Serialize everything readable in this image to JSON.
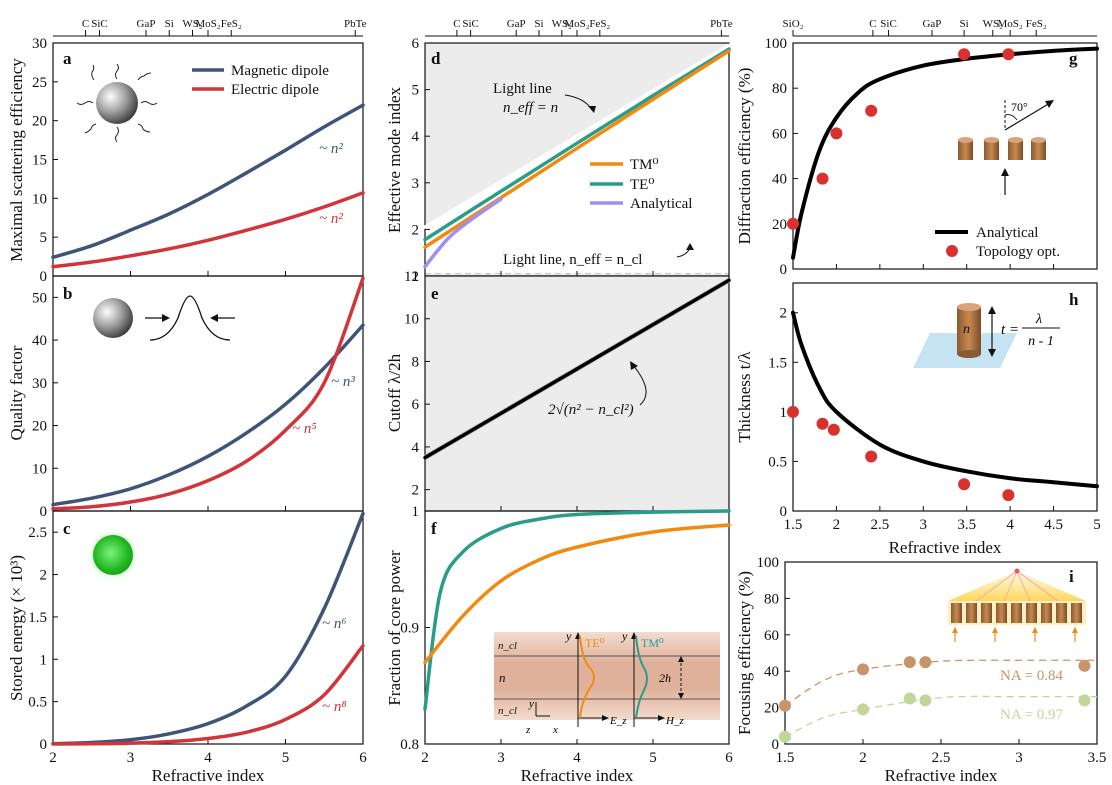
{
  "colors": {
    "magnetic": "#3e5478",
    "electric": "#d2343a",
    "tm0": "#f28a10",
    "te0": "#2a9d8a",
    "analytical_purple": "#a08ef0",
    "red_dot": "#d8312e",
    "brown": "#c8946a",
    "olive": "#c2d69a",
    "shade": "#ececec"
  },
  "top_materials_left": [
    "C",
    "SiC",
    "GaP",
    "Si",
    "WS₂",
    "MoS₂",
    "FeS₂",
    "PbTe"
  ],
  "top_materials_mid": [
    "C",
    "SiC",
    "GaP",
    "Si",
    "WS₂",
    "MoS₂",
    "FeS₂",
    "PbTe"
  ],
  "top_materials_right": [
    "SiO₂",
    "C",
    "SiC",
    "GaP",
    "Si",
    "WS₂",
    "MoS₂",
    "FeS₂"
  ],
  "panels": {
    "a": {
      "letter": "a",
      "ylabel": "Maximal scattering efficiency",
      "legend": [
        "Magnetic dipole",
        "Electric dipole"
      ],
      "annotations": [
        "~ n²",
        "~ n²"
      ]
    },
    "b": {
      "letter": "b",
      "ylabel": "Quality factor",
      "annotations": [
        "~ n³",
        "~ n⁵"
      ]
    },
    "c": {
      "letter": "c",
      "ylabel": "Stored energy (× 10³)",
      "xlabel": "Refractive index",
      "annotations": [
        "~ n⁶",
        "~ n⁸"
      ]
    },
    "d": {
      "letter": "d",
      "ylabel": "Effective mode index",
      "legend": [
        "TM⁰",
        "TE⁰",
        "Analytical"
      ],
      "light_line_top": [
        "Light line",
        "n_eff = n"
      ],
      "light_line_bottom": "Light line, n_eff = n_cl"
    },
    "e": {
      "letter": "e",
      "ylabel": "Cutoff λ/2h",
      "formula": "2√(n² − n_cl²)"
    },
    "f": {
      "letter": "f",
      "ylabel": "Fraction of core power",
      "xlabel": "Refractive index",
      "inset": {
        "ncl_top": "n_cl",
        "n_core": "n",
        "ncl_bottom": "n_cl",
        "te_label": "TE⁰",
        "tm_label": "TM⁰",
        "thickness": "2h",
        "ex": "E_z",
        "hz": "H_z",
        "axes_y": "y",
        "axes_z": "z",
        "axes_x": "x"
      }
    },
    "g": {
      "letter": "g",
      "ylabel": "Diffraction efficiency (%)",
      "legend": [
        "Analytical",
        "Topology opt."
      ],
      "angle_label": "70°"
    },
    "h": {
      "letter": "h",
      "ylabel": "Thickness t/λ",
      "xlabel": "Refractive index",
      "inset_n": "n",
      "inset_formula_lhs": "t =",
      "inset_formula_num": "λ",
      "inset_formula_den": "n - 1"
    },
    "i": {
      "letter": "i",
      "ylabel": "Focusing efficiency (%)",
      "xlabel": "Refractive index",
      "annotations": [
        "NA = 0.84",
        "NA = 0.97"
      ]
    }
  },
  "chart_data": [
    {
      "panel": "a",
      "type": "line",
      "xlim": [
        2,
        6
      ],
      "ylim": [
        0,
        30
      ],
      "xticks": [
        2,
        3,
        4,
        5,
        6
      ],
      "yticks": [
        0,
        5,
        10,
        15,
        20,
        25,
        30
      ],
      "ylabel": "Maximal scattering efficiency",
      "series": [
        {
          "name": "Magnetic dipole",
          "x": [
            2,
            2.5,
            3,
            3.5,
            4,
            4.5,
            5,
            5.5,
            6
          ],
          "y": [
            2.4,
            3.9,
            5.9,
            8.0,
            10.5,
            13.3,
            16.2,
            19.2,
            22.0
          ]
        },
        {
          "name": "Electric dipole",
          "x": [
            2,
            2.5,
            3,
            3.5,
            4,
            4.5,
            5,
            5.5,
            6
          ],
          "y": [
            1.2,
            1.8,
            2.6,
            3.5,
            4.6,
            5.9,
            7.3,
            8.9,
            10.7
          ]
        }
      ]
    },
    {
      "panel": "b",
      "type": "line",
      "xlim": [
        2,
        6
      ],
      "ylim": [
        0,
        55
      ],
      "xticks": [
        2,
        3,
        4,
        5,
        6
      ],
      "yticks": [
        0,
        10,
        20,
        30,
        40,
        50
      ],
      "ylabel": "Quality factor",
      "series": [
        {
          "name": "Magnetic dipole",
          "x": [
            2,
            2.5,
            3,
            3.5,
            4,
            4.5,
            5,
            5.5,
            6
          ],
          "y": [
            1.5,
            3.0,
            5.2,
            8.5,
            12.8,
            18.3,
            25.0,
            33.5,
            43.5
          ]
        },
        {
          "name": "Electric dipole",
          "x": [
            2,
            2.5,
            3,
            3.5,
            4,
            4.5,
            5,
            5.5,
            6
          ],
          "y": [
            0.5,
            1.0,
            2.1,
            4.0,
            7.1,
            11.7,
            18.9,
            30.0,
            54.5
          ]
        }
      ]
    },
    {
      "panel": "c",
      "type": "line",
      "xlim": [
        2,
        6
      ],
      "ylim": [
        0,
        2.75
      ],
      "xticks": [
        2,
        3,
        4,
        5,
        6
      ],
      "yticks": [
        0,
        0.5,
        1,
        1.5,
        2,
        2.5
      ],
      "xlabel": "Refractive index",
      "ylabel": "Stored energy (× 10³)",
      "series": [
        {
          "name": "Magnetic dipole",
          "x": [
            2,
            2.5,
            3,
            3.5,
            4,
            4.5,
            5,
            5.5,
            6
          ],
          "y": [
            0.004,
            0.018,
            0.05,
            0.12,
            0.24,
            0.45,
            0.8,
            1.6,
            2.72
          ]
        },
        {
          "name": "Electric dipole",
          "x": [
            2,
            2.5,
            3,
            3.5,
            4,
            4.5,
            5,
            5.5,
            6
          ],
          "y": [
            0.0,
            0.003,
            0.01,
            0.028,
            0.065,
            0.14,
            0.29,
            0.58,
            1.16
          ]
        }
      ]
    },
    {
      "panel": "d",
      "type": "line",
      "xlim": [
        2,
        6
      ],
      "ylim": [
        1,
        6
      ],
      "xticks": [
        2,
        3,
        4,
        5,
        6
      ],
      "yticks": [
        1,
        2,
        3,
        4,
        5,
        6
      ],
      "ylabel": "Effective mode index",
      "series": [
        {
          "name": "Light line",
          "x": [
            2,
            6
          ],
          "y": [
            2.05,
            5.95
          ]
        },
        {
          "name": "TE⁰",
          "x": [
            2,
            3,
            4,
            5,
            6
          ],
          "y": [
            1.78,
            2.82,
            3.85,
            4.87,
            5.87
          ]
        },
        {
          "name": "TM⁰",
          "x": [
            2,
            3,
            4,
            5,
            6
          ],
          "y": [
            1.62,
            2.68,
            3.74,
            4.79,
            5.83
          ]
        },
        {
          "name": "Analytical",
          "x": [
            2,
            2.3,
            2.6,
            3
          ],
          "y": [
            1.2,
            1.8,
            2.2,
            2.65
          ]
        }
      ]
    },
    {
      "panel": "e",
      "type": "line",
      "xlim": [
        2,
        6
      ],
      "ylim": [
        1,
        12
      ],
      "xticks": [
        2,
        3,
        4,
        5,
        6
      ],
      "yticks": [
        2,
        4,
        6,
        8,
        10,
        12
      ],
      "ylabel": "Cutoff λ/2h",
      "series": [
        {
          "name": "2√(n² − n_cl²)",
          "x": [
            2,
            6
          ],
          "y": [
            3.5,
            11.8
          ]
        }
      ]
    },
    {
      "panel": "f",
      "type": "line",
      "xlim": [
        2,
        6
      ],
      "ylim": [
        0.8,
        1.0
      ],
      "xticks": [
        2,
        3,
        4,
        5,
        6
      ],
      "yticks": [
        0.8,
        0.9,
        1.0
      ],
      "xlabel": "Refractive index",
      "ylabel": "Fraction of core power",
      "series": [
        {
          "name": "TE⁰",
          "x": [
            2,
            2.2,
            2.5,
            3,
            3.5,
            4,
            5,
            6
          ],
          "y": [
            0.83,
            0.93,
            0.965,
            0.985,
            0.993,
            0.997,
            0.999,
            1.0
          ]
        },
        {
          "name": "TM⁰",
          "x": [
            2,
            2.5,
            3,
            3.5,
            4,
            5,
            6
          ],
          "y": [
            0.87,
            0.91,
            0.94,
            0.958,
            0.969,
            0.982,
            0.988
          ]
        }
      ]
    },
    {
      "panel": "g",
      "type": "line+scatter",
      "xlim": [
        1.5,
        5
      ],
      "ylim": [
        0,
        100
      ],
      "xticks": [
        1.5,
        2,
        2.5,
        3,
        3.5,
        4,
        4.5,
        5
      ],
      "yticks": [
        0,
        20,
        40,
        60,
        80,
        100
      ],
      "ylabel": "Diffraction efficiency (%)",
      "series": [
        {
          "name": "Analytical",
          "x": [
            1.5,
            1.6,
            1.8,
            2,
            2.25,
            2.5,
            3,
            3.5,
            4,
            4.5,
            5
          ],
          "y": [
            5,
            25,
            52,
            67,
            78,
            84,
            90,
            93,
            95,
            96.5,
            97.5
          ]
        },
        {
          "name": "Topology opt.",
          "x": [
            1.5,
            1.84,
            2.0,
            2.4,
            3.47,
            3.98
          ],
          "y": [
            20,
            40,
            60,
            70,
            95,
            95
          ]
        }
      ]
    },
    {
      "panel": "h",
      "type": "line+scatter",
      "xlim": [
        1.5,
        5
      ],
      "ylim": [
        0,
        2.3
      ],
      "xticks": [
        1.5,
        2,
        2.5,
        3,
        3.5,
        4,
        4.5,
        5
      ],
      "yticks": [
        0,
        0.5,
        1,
        1.5,
        2
      ],
      "xlabel": "Refractive index",
      "ylabel": "Thickness t/λ",
      "series": [
        {
          "name": "Analytical",
          "x": [
            1.5,
            1.6,
            1.8,
            2,
            2.5,
            3,
            3.5,
            4,
            4.5,
            5
          ],
          "y": [
            2.0,
            1.67,
            1.25,
            1.0,
            0.67,
            0.5,
            0.4,
            0.33,
            0.29,
            0.25
          ]
        },
        {
          "name": "Topology opt.",
          "x": [
            1.5,
            1.84,
            1.97,
            2.4,
            3.47,
            3.98
          ],
          "y": [
            1.0,
            0.88,
            0.82,
            0.55,
            0.27,
            0.16
          ]
        }
      ]
    },
    {
      "panel": "i",
      "type": "scatter+line",
      "xlim": [
        1.5,
        3.5
      ],
      "ylim": [
        0,
        100
      ],
      "xticks": [
        1.5,
        2,
        2.5,
        3,
        3.5
      ],
      "yticks": [
        0,
        20,
        40,
        60,
        80,
        100
      ],
      "xlabel": "Refractive index",
      "ylabel": "Focusing efficiency (%)",
      "series": [
        {
          "name": "NA = 0.84",
          "x": [
            1.5,
            2.0,
            2.3,
            2.4,
            3.42
          ],
          "y": [
            21,
            41,
            45,
            45,
            43
          ]
        },
        {
          "name": "NA = 0.97",
          "x": [
            1.5,
            2.0,
            2.3,
            2.4,
            3.42
          ],
          "y": [
            4,
            19,
            25,
            24,
            24
          ]
        }
      ]
    }
  ]
}
